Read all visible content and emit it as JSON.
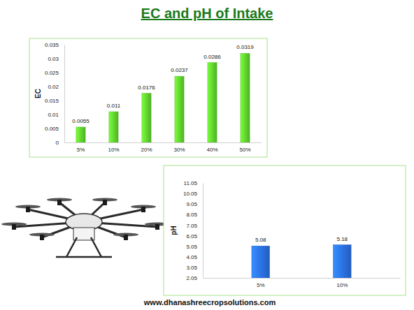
{
  "title": "EC and pH of Intake",
  "footer": "www.dhanashreecropsolutions.com",
  "chart_data": [
    {
      "type": "bar",
      "y_label": "EC",
      "categories": [
        "5%",
        "10%",
        "20%",
        "30%",
        "40%",
        "50%"
      ],
      "values": [
        0.0055,
        0.011,
        0.0176,
        0.0237,
        0.0286,
        0.0319
      ],
      "color": "#5fd12e",
      "ylim": [
        0,
        0.035
      ],
      "yticks": [
        0,
        0.005,
        0.01,
        0.015,
        0.02,
        0.025,
        0.03,
        0.035
      ],
      "grid": false,
      "data_labels": true
    },
    {
      "type": "bar",
      "y_label": "pH",
      "categories": [
        "5%",
        "10%"
      ],
      "values": [
        5.08,
        5.18
      ],
      "color": "#2a6fe0",
      "ylim": [
        2.05,
        11.05
      ],
      "yticks": [
        2.05,
        3.05,
        4.05,
        5.05,
        6.05,
        7.05,
        8.05,
        9.05,
        10.05,
        11.05
      ],
      "grid": false,
      "data_labels": true
    }
  ]
}
